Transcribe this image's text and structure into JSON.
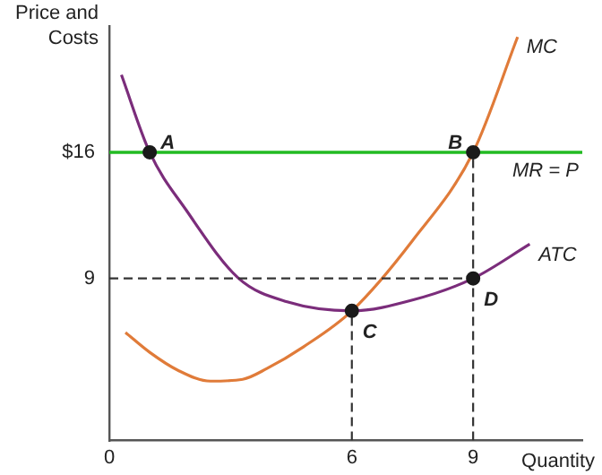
{
  "chart_data": {
    "type": "line",
    "xlabel": "Quantity",
    "ylabel": "Price and Costs",
    "xlim": [
      0,
      11.7
    ],
    "ylim": [
      0,
      23
    ],
    "xticks": [
      0,
      6,
      9
    ],
    "yticks": [
      9,
      {
        "value": 16,
        "label": "$16"
      }
    ],
    "grid": false,
    "legend": false,
    "marker": "none",
    "series": [
      {
        "name": "MC",
        "color": "#e07b39",
        "x": [
          0.4,
          1.0,
          1.7,
          2.5,
          3.3,
          3.9,
          4.8,
          6,
          7.5,
          9,
          10.1
        ],
        "values": [
          6.0,
          4.9,
          3.9,
          3.3,
          3.4,
          4.0,
          5.2,
          7.2,
          11.1,
          16,
          22.4
        ]
      },
      {
        "name": "ATC",
        "color": "#7b2d7b",
        "x": [
          0.3,
          1.0,
          1.9,
          3.2,
          4.4,
          6,
          7.5,
          9,
          10.4
        ],
        "values": [
          20.3,
          16,
          12.8,
          9,
          7.7,
          7.2,
          7.8,
          9,
          10.9
        ]
      },
      {
        "type": "line",
        "color": "#333333",
        "line_style": "dashed",
        "x": [
          0,
          9
        ],
        "values": [
          9,
          9
        ]
      },
      {
        "type": "line",
        "color": "#333333",
        "line_style": "dashed",
        "x": [
          6,
          6
        ],
        "values": [
          0,
          7.2
        ]
      },
      {
        "type": "line",
        "color": "#333333",
        "line_style": "dashed",
        "x": [
          9,
          9
        ],
        "values": [
          0,
          16
        ]
      },
      {
        "type": "scatter",
        "color": "#1a1a1a",
        "marker": "circle",
        "x": [
          1.0,
          9,
          6,
          9
        ],
        "values": [
          16,
          16,
          7.2,
          9
        ]
      }
    ],
    "ref_lines": [
      {
        "axis": "y",
        "value": 16,
        "label": "MR = P",
        "color": "#22bb22"
      }
    ],
    "annotations": [
      {
        "text": "A",
        "x": 1.0,
        "y": 16
      },
      {
        "text": "B",
        "x": 9,
        "y": 16
      },
      {
        "text": "C",
        "x": 6,
        "y": 7.2
      },
      {
        "text": "D",
        "x": 9,
        "y": 9
      }
    ]
  }
}
